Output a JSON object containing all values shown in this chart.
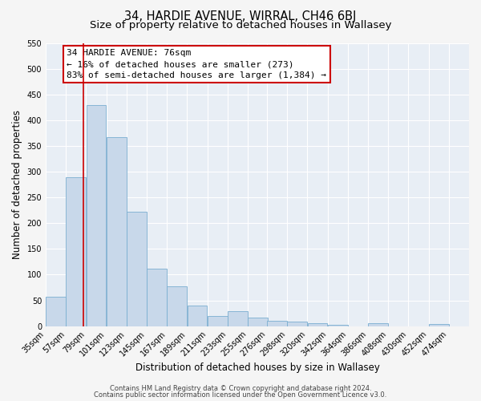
{
  "title": "34, HARDIE AVENUE, WIRRAL, CH46 6BJ",
  "subtitle": "Size of property relative to detached houses in Wallasey",
  "xlabel": "Distribution of detached houses by size in Wallasey",
  "ylabel": "Number of detached properties",
  "bar_left_edges": [
    35,
    57,
    79,
    101,
    123,
    145,
    167,
    189,
    211,
    233,
    255,
    276,
    298,
    320,
    342,
    364,
    386,
    408,
    430,
    452
  ],
  "bar_heights": [
    57,
    290,
    430,
    367,
    222,
    112,
    77,
    40,
    20,
    29,
    17,
    10,
    8,
    5,
    3,
    0,
    5,
    0,
    0,
    4
  ],
  "bin_width": 22,
  "bar_color": "#c8d8ea",
  "bar_edge_color": "#7aaed0",
  "property_line_x": 76,
  "property_line_color": "#cc0000",
  "ylim": [
    0,
    550
  ],
  "yticks": [
    0,
    50,
    100,
    150,
    200,
    250,
    300,
    350,
    400,
    450,
    500,
    550
  ],
  "xtick_labels": [
    "35sqm",
    "57sqm",
    "79sqm",
    "101sqm",
    "123sqm",
    "145sqm",
    "167sqm",
    "189sqm",
    "211sqm",
    "233sqm",
    "255sqm",
    "276sqm",
    "298sqm",
    "320sqm",
    "342sqm",
    "364sqm",
    "386sqm",
    "408sqm",
    "430sqm",
    "452sqm",
    "474sqm"
  ],
  "xtick_positions": [
    35,
    57,
    79,
    101,
    123,
    145,
    167,
    189,
    211,
    233,
    255,
    276,
    298,
    320,
    342,
    364,
    386,
    408,
    430,
    452,
    474
  ],
  "annotation_title": "34 HARDIE AVENUE: 76sqm",
  "annotation_line1": "← 16% of detached houses are smaller (273)",
  "annotation_line2": "83% of semi-detached houses are larger (1,384) →",
  "annotation_box_color": "#cc0000",
  "footnote1": "Contains HM Land Registry data © Crown copyright and database right 2024.",
  "footnote2": "Contains public sector information licensed under the Open Government Licence v3.0.",
  "fig_bg_color": "#f5f5f5",
  "plot_bg_color": "#e8eef5",
  "title_fontsize": 10.5,
  "subtitle_fontsize": 9.5,
  "axis_label_fontsize": 8.5,
  "tick_fontsize": 7,
  "annotation_fontsize": 8,
  "footnote_fontsize": 6
}
